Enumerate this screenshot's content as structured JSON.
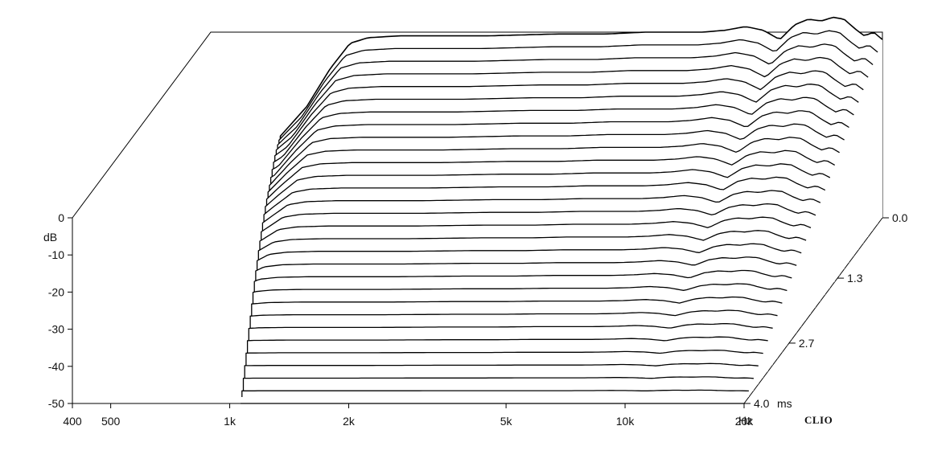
{
  "chart_data": {
    "type": "waterfall",
    "brand": "CLIO",
    "ylabel": "dB",
    "xunit": "Hz",
    "zunit": "ms",
    "ylim": [
      -50,
      0
    ],
    "xlim": [
      400,
      20000
    ],
    "xscale": "log",
    "zlim": [
      0,
      4.0
    ],
    "y_ticks": [
      {
        "value": 0,
        "label": "0"
      },
      {
        "value": -10,
        "label": "-10"
      },
      {
        "value": -20,
        "label": "-20"
      },
      {
        "value": -30,
        "label": "-30"
      },
      {
        "value": -40,
        "label": "-40"
      },
      {
        "value": -50,
        "label": "-50"
      }
    ],
    "x_ticks": [
      {
        "value": 400,
        "label": "400"
      },
      {
        "value": 500,
        "label": "500"
      },
      {
        "value": 1000,
        "label": "1k"
      },
      {
        "value": 2000,
        "label": "2k"
      },
      {
        "value": 5000,
        "label": "5k"
      },
      {
        "value": 10000,
        "label": "10k"
      },
      {
        "value": 20000,
        "label": "20k"
      }
    ],
    "z_ticks": [
      {
        "value": 0.0,
        "label": "0.0"
      },
      {
        "value": 1.3,
        "label": "1.3"
      },
      {
        "value": 2.7,
        "label": "2.7"
      },
      {
        "value": 4.0,
        "label": "4.0"
      }
    ],
    "grid": false,
    "slice_count": 30,
    "line_color": "#000000",
    "background_color": "#ffffff",
    "first_slice": {
      "time_ms": 0.0,
      "points": [
        [
          600,
          -28
        ],
        [
          700,
          -20
        ],
        [
          800,
          -10
        ],
        [
          900,
          -3
        ],
        [
          1000,
          -1.5
        ],
        [
          1200,
          -1.0
        ],
        [
          1500,
          -1.0
        ],
        [
          2000,
          -1.0
        ],
        [
          3000,
          -0.5
        ],
        [
          4000,
          -0.5
        ],
        [
          5000,
          0.0
        ],
        [
          6000,
          0.0
        ],
        [
          7000,
          0.0
        ],
        [
          8000,
          0.5
        ],
        [
          9000,
          1.5
        ],
        [
          10000,
          0.5
        ],
        [
          11000,
          -2.0
        ],
        [
          12000,
          2.0
        ],
        [
          13000,
          3.5
        ],
        [
          14000,
          3.0
        ],
        [
          15000,
          4.0
        ],
        [
          16000,
          3.5
        ],
        [
          17000,
          1.0
        ],
        [
          18000,
          -1.0
        ],
        [
          19000,
          0.0
        ],
        [
          20000,
          -2.0
        ]
      ]
    },
    "last_slice": {
      "time_ms": 4.0,
      "points": [
        [
          600,
          -38
        ],
        [
          650,
          -42
        ],
        [
          700,
          -48
        ],
        [
          800,
          -50
        ],
        [
          1000,
          -50
        ],
        [
          2000,
          -50
        ],
        [
          5000,
          -50
        ],
        [
          10000,
          -50
        ],
        [
          20000,
          -50
        ]
      ]
    }
  }
}
